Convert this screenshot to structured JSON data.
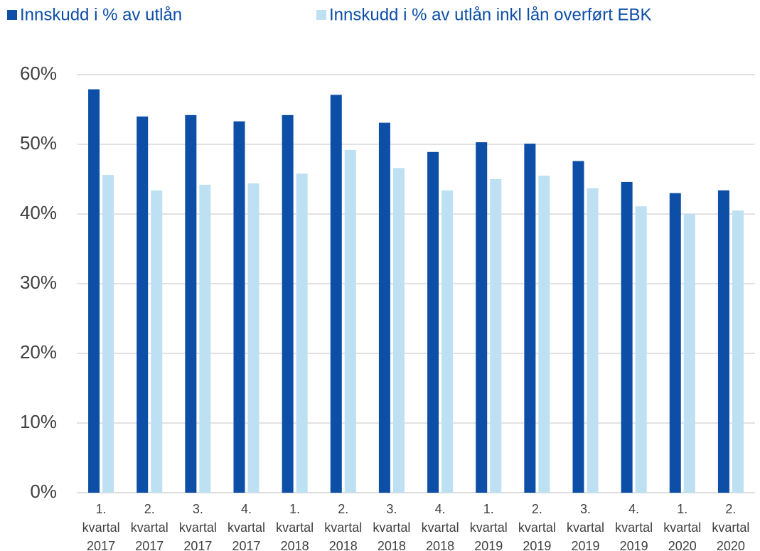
{
  "chart_data": {
    "type": "bar",
    "categories": [
      "1. kvartal 2017",
      "2. kvartal 2017",
      "3. kvartal 2017",
      "4. kvartal 2017",
      "1. kvartal 2018",
      "2. kvartal 2018",
      "3. kvartal 2018",
      "4. kvartal 2018",
      "1. kvartal 2019",
      "2. kvartal 2019",
      "3. kvartal 2019",
      "4. kvartal 2019",
      "1. kvartal 2020",
      "2. kvartal 2020"
    ],
    "series": [
      {
        "name": "Innskudd i % av utlån",
        "color": "#0d4ea6",
        "values": [
          57.9,
          54.0,
          54.2,
          53.3,
          54.2,
          57.1,
          53.1,
          48.9,
          50.3,
          50.1,
          47.6,
          44.6,
          43.0,
          43.4
        ]
      },
      {
        "name": "Innskudd i % av utlån inkl lån overført EBK",
        "color": "#bde0f2",
        "values": [
          45.6,
          43.4,
          44.2,
          44.4,
          45.8,
          49.2,
          46.6,
          43.4,
          45.0,
          45.5,
          43.7,
          41.1,
          40.0,
          40.5
        ]
      }
    ],
    "ylim": [
      0,
      60
    ],
    "yticks": [
      {
        "value": 0,
        "label": "0%"
      },
      {
        "value": 10,
        "label": "10%"
      },
      {
        "value": 20,
        "label": "20%"
      },
      {
        "value": 30,
        "label": "30%"
      },
      {
        "value": 40,
        "label": "40%"
      },
      {
        "value": 50,
        "label": "50%"
      },
      {
        "value": 60,
        "label": "60%"
      }
    ],
    "grid": true,
    "legend": "top"
  }
}
